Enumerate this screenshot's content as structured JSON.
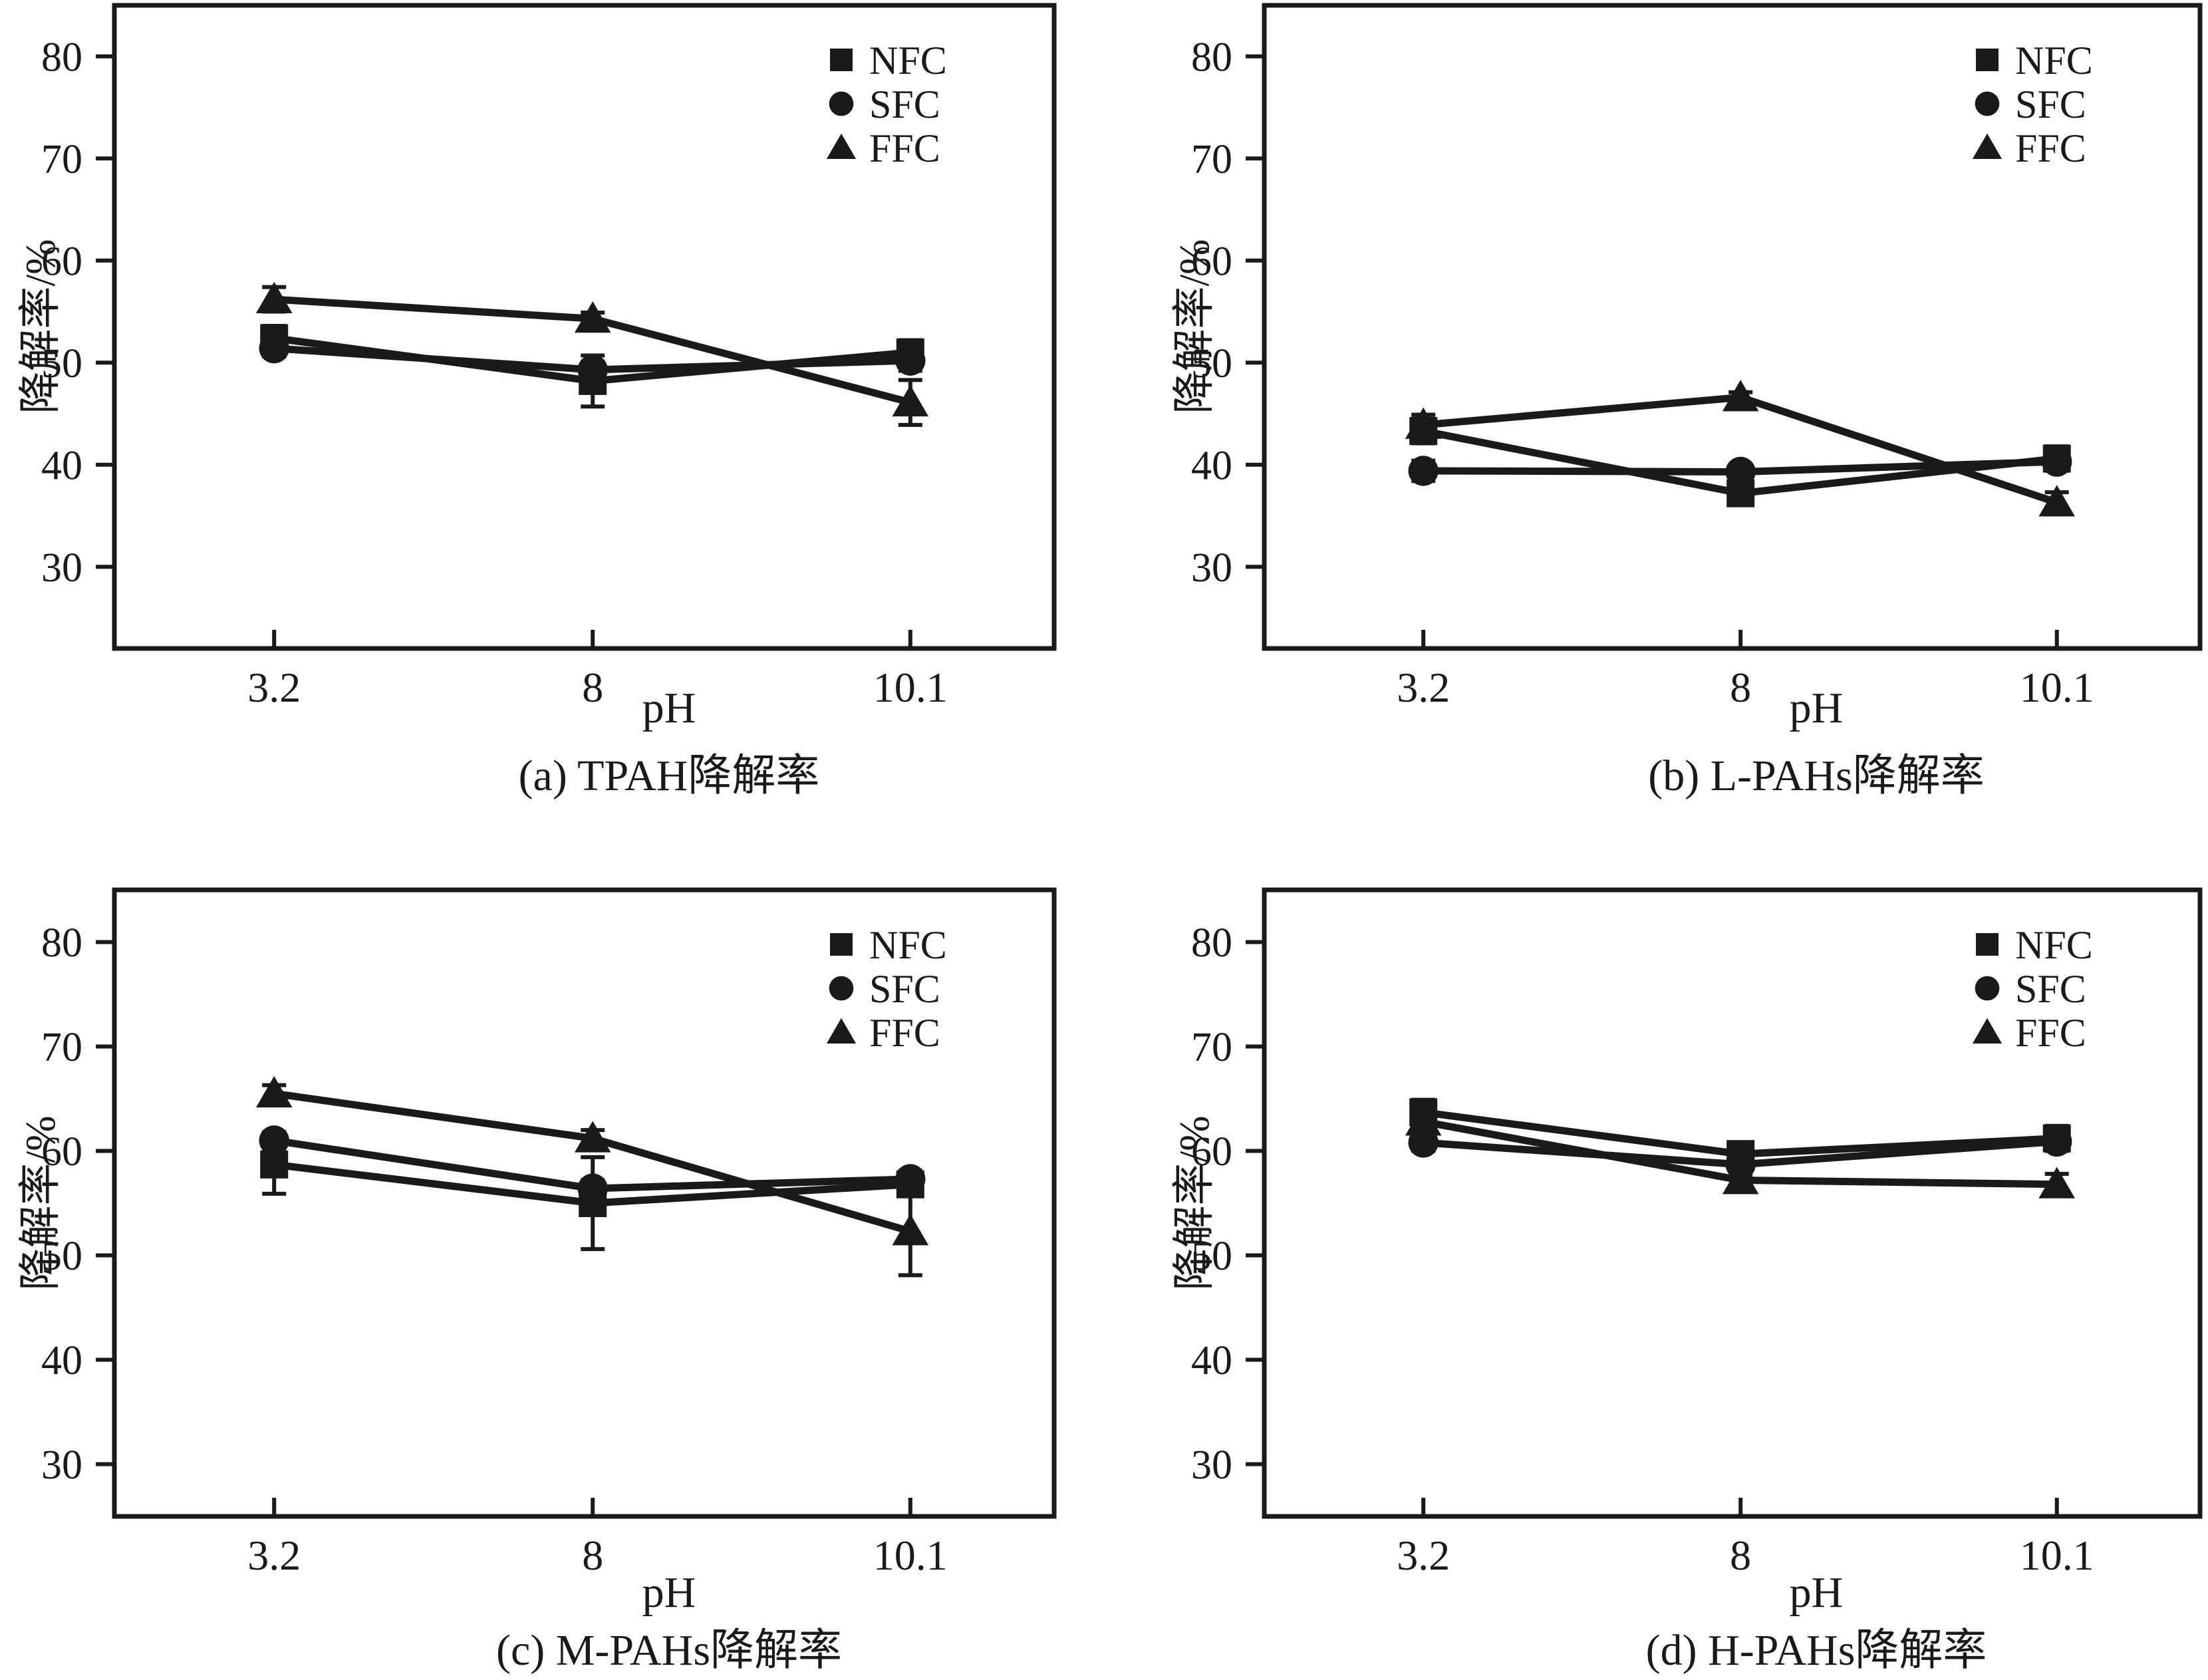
{
  "figure": {
    "background": "#ffffff",
    "ink_color": "#1a1a1a"
  },
  "legend": {
    "items": [
      {
        "label": "NFC",
        "marker": "square"
      },
      {
        "label": "SFC",
        "marker": "circle"
      },
      {
        "label": "FFC",
        "marker": "triangle"
      }
    ],
    "position": "top-right"
  },
  "chart_data": [
    {
      "id": "a",
      "type": "line",
      "title": "(a) TPAH降解率",
      "xlabel": "pH",
      "ylabel": "降解率/%",
      "categories": [
        "3.2",
        "8",
        "10.1"
      ],
      "y_ticks": [
        30,
        40,
        50,
        60,
        70,
        80
      ],
      "ylim": [
        22,
        85
      ],
      "grid": false,
      "legend_position": "top-right",
      "series": [
        {
          "name": "NFC",
          "marker": "square",
          "values": [
            52.4,
            48.2,
            51.0
          ],
          "errors": [
            1.2,
            2.5,
            1.2
          ]
        },
        {
          "name": "SFC",
          "marker": "circle",
          "values": [
            51.4,
            49.3,
            50.2
          ],
          "errors": [
            0.8,
            0.8,
            1.0
          ]
        },
        {
          "name": "FFC",
          "marker": "triangle",
          "values": [
            56.2,
            54.3,
            46.1
          ],
          "errors": [
            1.2,
            0.6,
            2.2
          ]
        }
      ]
    },
    {
      "id": "b",
      "type": "line",
      "title": "(b) L-PAHs降解率",
      "xlabel": "pH",
      "ylabel": "降解率/%",
      "categories": [
        "3.2",
        "8",
        "10.1"
      ],
      "y_ticks": [
        30,
        40,
        50,
        60,
        70,
        80
      ],
      "ylim": [
        22,
        85
      ],
      "grid": false,
      "legend_position": "top-right",
      "series": [
        {
          "name": "NFC",
          "marker": "square",
          "values": [
            43.3,
            37.2,
            40.6
          ],
          "errors": [
            1.2,
            1.0,
            1.2
          ]
        },
        {
          "name": "SFC",
          "marker": "circle",
          "values": [
            39.4,
            39.3,
            40.3
          ],
          "errors": [
            1.0,
            0.6,
            0.8
          ]
        },
        {
          "name": "FFC",
          "marker": "triangle",
          "values": [
            43.9,
            46.6,
            36.3
          ],
          "errors": [
            1.0,
            0.5,
            1.0
          ]
        }
      ]
    },
    {
      "id": "c",
      "type": "line",
      "title": "(c) M-PAHs降解率",
      "xlabel": "pH",
      "ylabel": "降解率/%",
      "categories": [
        "3.2",
        "8",
        "10.1"
      ],
      "y_ticks": [
        30,
        40,
        50,
        60,
        70,
        80
      ],
      "ylim": [
        25,
        85
      ],
      "grid": false,
      "legend_position": "top-right",
      "series": [
        {
          "name": "NFC",
          "marker": "square",
          "values": [
            58.7,
            55.0,
            56.8
          ],
          "errors": [
            2.8,
            4.4,
            1.0
          ]
        },
        {
          "name": "SFC",
          "marker": "circle",
          "values": [
            61.0,
            56.4,
            57.3
          ],
          "errors": [
            0.8,
            0.8,
            0.8
          ]
        },
        {
          "name": "FFC",
          "marker": "triangle",
          "values": [
            65.5,
            61.2,
            52.3
          ],
          "errors": [
            0.8,
            0.8,
            4.2
          ]
        }
      ]
    },
    {
      "id": "d",
      "type": "line",
      "title": "(d) H-PAHs降解率",
      "xlabel": "pH",
      "ylabel": "降解率/%",
      "categories": [
        "3.2",
        "8",
        "10.1"
      ],
      "y_ticks": [
        30,
        40,
        50,
        60,
        70,
        80
      ],
      "ylim": [
        25,
        85
      ],
      "grid": false,
      "legend_position": "top-right",
      "series": [
        {
          "name": "NFC",
          "marker": "square",
          "values": [
            63.7,
            59.7,
            61.2
          ],
          "errors": [
            1.2,
            0.6,
            1.2
          ]
        },
        {
          "name": "SFC",
          "marker": "circle",
          "values": [
            60.8,
            58.7,
            60.9
          ],
          "errors": [
            0.8,
            0.5,
            0.8
          ]
        },
        {
          "name": "FFC",
          "marker": "triangle",
          "values": [
            62.8,
            57.2,
            56.8
          ],
          "errors": [
            0.8,
            0.5,
            1.0
          ]
        }
      ]
    }
  ]
}
